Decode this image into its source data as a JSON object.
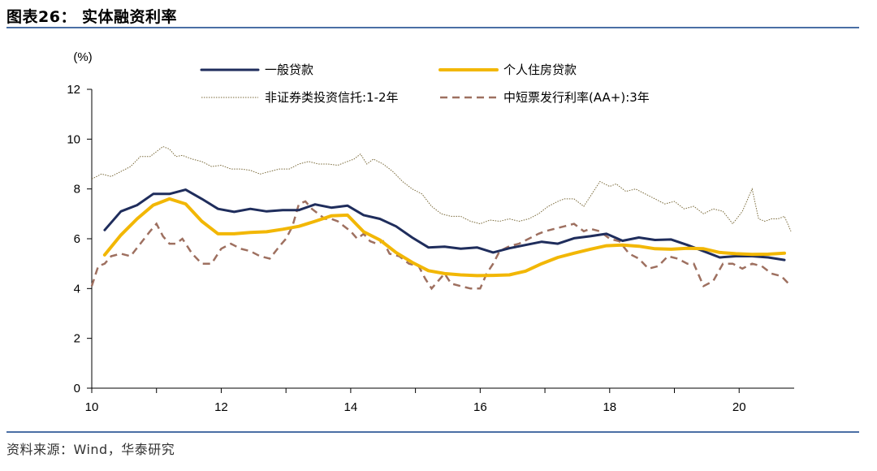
{
  "figure": {
    "title": "图表26： 实体融资利率",
    "source": "资料来源：Wind，华泰研究"
  },
  "chart_data": {
    "type": "line",
    "ylabel": "(%)",
    "ylim": [
      0,
      12
    ],
    "yticks": [
      0,
      2,
      4,
      6,
      8,
      10,
      12
    ],
    "xlim": [
      2010,
      2020.85
    ],
    "xticks": [
      10,
      12,
      14,
      16,
      18,
      20
    ],
    "grid": false,
    "legend": "top",
    "series": [
      {
        "name": "一般贷款",
        "color": "#1f2d5c",
        "style": "solid-thick",
        "x": [
          2010.2,
          2010.45,
          2010.7,
          2010.95,
          2011.2,
          2011.45,
          2011.7,
          2011.95,
          2012.2,
          2012.45,
          2012.7,
          2012.95,
          2013.2,
          2013.45,
          2013.7,
          2013.95,
          2014.2,
          2014.45,
          2014.7,
          2014.95,
          2015.2,
          2015.45,
          2015.7,
          2015.95,
          2016.2,
          2016.45,
          2016.7,
          2016.95,
          2017.2,
          2017.45,
          2017.7,
          2017.95,
          2018.2,
          2018.45,
          2018.7,
          2018.95,
          2019.2,
          2019.45,
          2019.7,
          2019.95,
          2020.2,
          2020.45,
          2020.7
        ],
        "y": [
          6.35,
          7.1,
          7.35,
          7.8,
          7.8,
          7.97,
          7.6,
          7.2,
          7.08,
          7.2,
          7.1,
          7.15,
          7.15,
          7.38,
          7.25,
          7.33,
          6.95,
          6.8,
          6.5,
          6.05,
          5.65,
          5.68,
          5.6,
          5.65,
          5.45,
          5.62,
          5.75,
          5.88,
          5.8,
          6.02,
          6.1,
          6.2,
          5.92,
          6.05,
          5.95,
          5.97,
          5.75,
          5.5,
          5.25,
          5.3,
          5.3,
          5.25,
          5.15
        ]
      },
      {
        "name": "个人住房贷款",
        "color": "#f2b705",
        "style": "solid-thick",
        "x": [
          2010.2,
          2010.45,
          2010.7,
          2010.95,
          2011.2,
          2011.45,
          2011.7,
          2011.95,
          2012.2,
          2012.45,
          2012.7,
          2012.95,
          2013.2,
          2013.45,
          2013.7,
          2013.95,
          2014.2,
          2014.45,
          2014.7,
          2014.95,
          2015.2,
          2015.45,
          2015.7,
          2015.95,
          2016.2,
          2016.45,
          2016.7,
          2016.95,
          2017.2,
          2017.45,
          2017.7,
          2017.95,
          2018.2,
          2018.45,
          2018.7,
          2018.95,
          2019.2,
          2019.45,
          2019.7,
          2019.95,
          2020.2,
          2020.45,
          2020.7
        ],
        "y": [
          5.35,
          6.15,
          6.8,
          7.35,
          7.6,
          7.4,
          6.7,
          6.2,
          6.2,
          6.25,
          6.28,
          6.38,
          6.5,
          6.7,
          6.92,
          6.95,
          6.28,
          5.95,
          5.45,
          5.05,
          4.72,
          4.6,
          4.55,
          4.52,
          4.53,
          4.55,
          4.7,
          5.0,
          5.25,
          5.42,
          5.58,
          5.72,
          5.75,
          5.7,
          5.6,
          5.58,
          5.62,
          5.6,
          5.45,
          5.4,
          5.37,
          5.38,
          5.42
        ]
      },
      {
        "name": "非证券类投资信托:1-2年",
        "color": "#7a6a3a",
        "style": "dotted",
        "x": [
          2010.0,
          2010.15,
          2010.3,
          2010.45,
          2010.6,
          2010.75,
          2010.9,
          2011.0,
          2011.1,
          2011.2,
          2011.3,
          2011.4,
          2011.55,
          2011.7,
          2011.85,
          2012.0,
          2012.15,
          2012.3,
          2012.45,
          2012.6,
          2012.75,
          2012.9,
          2013.05,
          2013.2,
          2013.35,
          2013.5,
          2013.65,
          2013.8,
          2013.95,
          2014.05,
          2014.15,
          2014.25,
          2014.35,
          2014.5,
          2014.65,
          2014.8,
          2014.95,
          2015.1,
          2015.25,
          2015.4,
          2015.55,
          2015.7,
          2015.85,
          2016.0,
          2016.15,
          2016.3,
          2016.45,
          2016.6,
          2016.75,
          2016.9,
          2017.05,
          2017.2,
          2017.3,
          2017.45,
          2017.6,
          2017.75,
          2017.85,
          2018.0,
          2018.1,
          2018.25,
          2018.4,
          2018.55,
          2018.7,
          2018.85,
          2019.0,
          2019.15,
          2019.3,
          2019.45,
          2019.6,
          2019.75,
          2019.9,
          2020.05,
          2020.2,
          2020.3,
          2020.4,
          2020.5,
          2020.6,
          2020.7,
          2020.8
        ],
        "y": [
          8.4,
          8.6,
          8.5,
          8.7,
          8.9,
          9.3,
          9.3,
          9.5,
          9.7,
          9.6,
          9.3,
          9.35,
          9.2,
          9.1,
          8.9,
          8.95,
          8.8,
          8.8,
          8.75,
          8.6,
          8.7,
          8.8,
          8.8,
          9.0,
          9.1,
          9.0,
          9.0,
          8.95,
          9.1,
          9.2,
          9.4,
          9.0,
          9.2,
          9.0,
          8.7,
          8.3,
          8.0,
          7.8,
          7.3,
          7.0,
          6.9,
          6.9,
          6.7,
          6.6,
          6.75,
          6.7,
          6.8,
          6.7,
          6.8,
          7.0,
          7.3,
          7.5,
          7.6,
          7.6,
          7.3,
          7.9,
          8.3,
          8.1,
          8.2,
          7.9,
          8.0,
          7.8,
          7.6,
          7.4,
          7.5,
          7.2,
          7.3,
          7.0,
          7.2,
          7.1,
          6.6,
          7.1,
          8.0,
          6.8,
          6.7,
          6.8,
          6.8,
          6.9,
          6.3
        ]
      },
      {
        "name": "中短票发行利率(AA+):3年",
        "color": "#9e7060",
        "style": "dashed",
        "x": [
          2010.0,
          2010.1,
          2010.2,
          2010.3,
          2010.45,
          2010.6,
          2010.75,
          2010.9,
          2011.0,
          2011.1,
          2011.2,
          2011.3,
          2011.4,
          2011.55,
          2011.7,
          2011.85,
          2012.0,
          2012.15,
          2012.3,
          2012.45,
          2012.6,
          2012.75,
          2012.9,
          2013.0,
          2013.1,
          2013.2,
          2013.3,
          2013.4,
          2013.5,
          2013.6,
          2013.7,
          2013.8,
          2013.9,
          2014.0,
          2014.1,
          2014.2,
          2014.3,
          2014.4,
          2014.5,
          2014.6,
          2014.75,
          2014.9,
          2015.05,
          2015.15,
          2015.25,
          2015.35,
          2015.45,
          2015.55,
          2015.7,
          2015.85,
          2016.0,
          2016.1,
          2016.2,
          2016.3,
          2016.45,
          2016.6,
          2016.75,
          2016.9,
          2017.0,
          2017.15,
          2017.3,
          2017.45,
          2017.6,
          2017.7,
          2017.85,
          2018.0,
          2018.15,
          2018.3,
          2018.45,
          2018.6,
          2018.75,
          2018.9,
          2019.05,
          2019.2,
          2019.3,
          2019.45,
          2019.6,
          2019.75,
          2019.9,
          2020.05,
          2020.2,
          2020.35,
          2020.5,
          2020.65,
          2020.8
        ],
        "y": [
          4.1,
          4.9,
          5.0,
          5.3,
          5.4,
          5.3,
          5.8,
          6.3,
          6.6,
          6.1,
          5.8,
          5.8,
          6.0,
          5.4,
          5.0,
          5.0,
          5.6,
          5.8,
          5.6,
          5.5,
          5.3,
          5.2,
          5.7,
          6.0,
          6.5,
          7.4,
          7.5,
          7.2,
          7.0,
          6.8,
          6.8,
          6.7,
          6.5,
          6.3,
          6.0,
          6.2,
          5.9,
          5.8,
          5.9,
          5.4,
          5.3,
          5.0,
          4.9,
          4.4,
          4.0,
          4.3,
          4.6,
          4.2,
          4.1,
          4.0,
          4.0,
          4.6,
          5.0,
          5.5,
          5.7,
          5.8,
          6.0,
          6.2,
          6.3,
          6.4,
          6.5,
          6.6,
          6.3,
          6.4,
          6.3,
          6.0,
          5.9,
          5.4,
          5.2,
          4.8,
          4.9,
          5.3,
          5.2,
          5.0,
          5.0,
          4.1,
          4.3,
          5.0,
          5.0,
          4.8,
          5.0,
          4.9,
          4.6,
          4.5,
          4.1
        ]
      }
    ]
  }
}
